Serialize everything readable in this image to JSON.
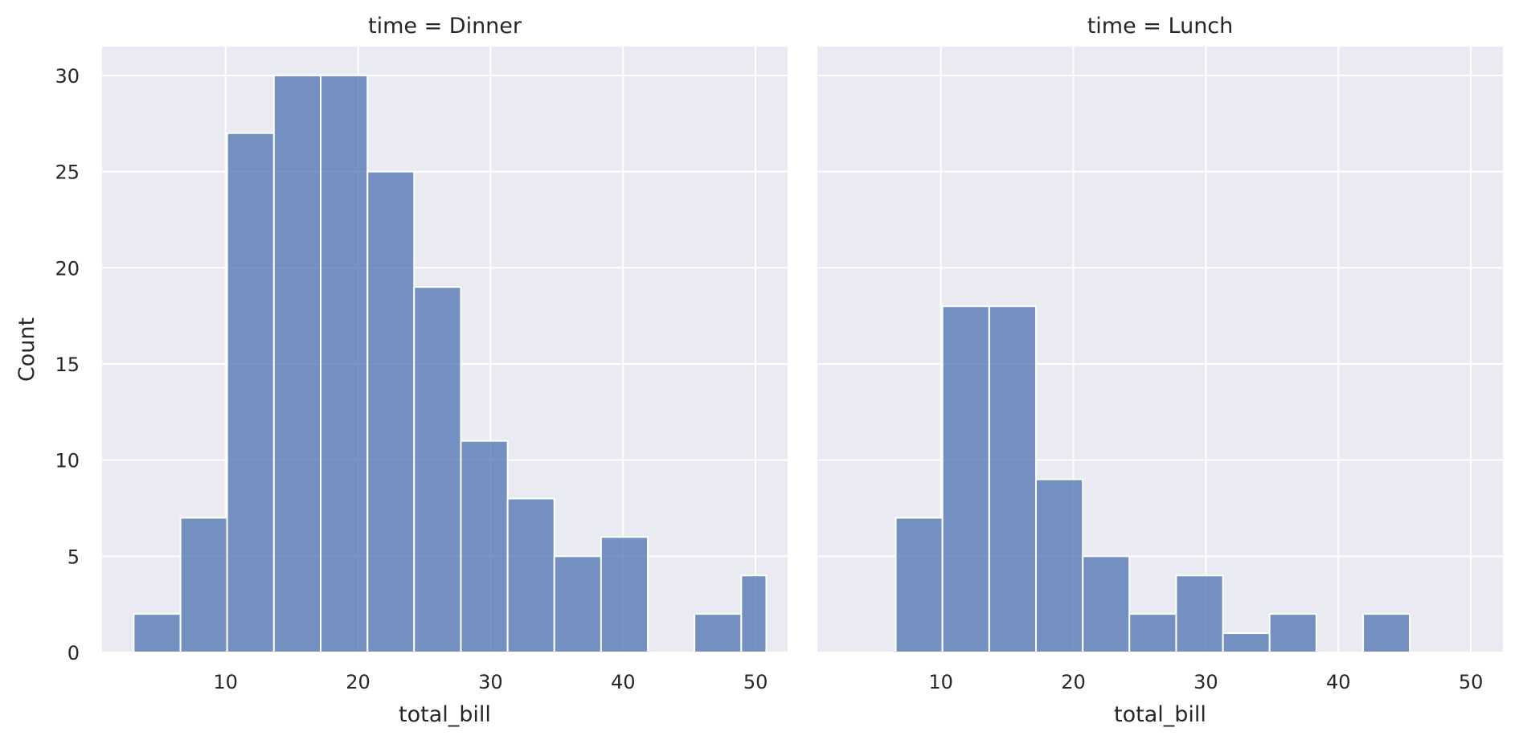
{
  "chart_data": {
    "type": "bar",
    "kind": "histogram",
    "bin_edges": [
      3.07,
      6.6,
      10.12,
      13.65,
      17.18,
      20.71,
      24.23,
      27.76,
      31.29,
      34.81,
      38.34,
      41.87,
      45.39,
      48.92,
      50.81
    ],
    "x_ticks": [
      10,
      20,
      30,
      40,
      50
    ],
    "y_ticks": [
      0,
      5,
      10,
      15,
      20,
      25,
      30
    ],
    "xlim": [
      0.68,
      52.42
    ],
    "ylim": [
      0,
      31.5
    ],
    "xlabel": "total_bill",
    "ylabel": "Count",
    "grid": true,
    "bar_color": "#4c72b0",
    "background_color": "#eaeaf2",
    "facets": [
      {
        "title": "time = Dinner",
        "values": [
          2,
          7,
          27,
          30,
          30,
          25,
          19,
          11,
          8,
          5,
          6,
          0,
          2,
          4
        ]
      },
      {
        "title": "time = Lunch",
        "values": [
          0,
          7,
          18,
          18,
          9,
          5,
          2,
          4,
          1,
          2,
          0,
          2,
          0,
          0
        ]
      }
    ]
  }
}
